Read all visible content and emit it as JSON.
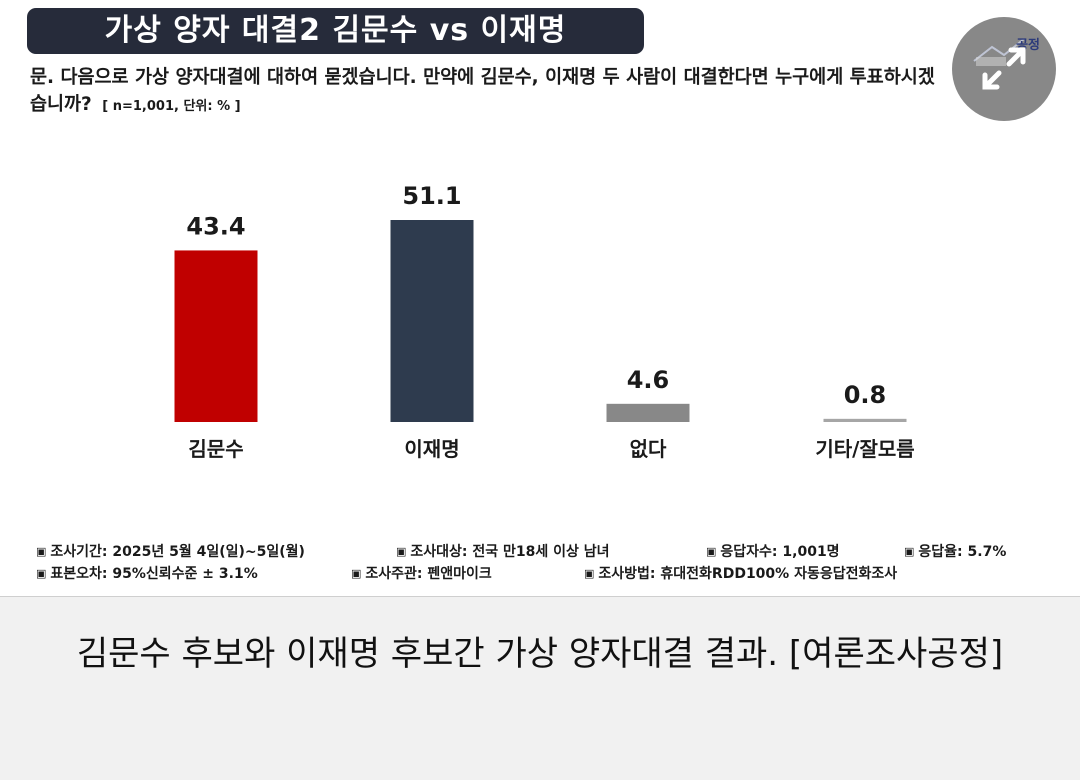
{
  "title": "가상 양자 대결2 김문수 vs 이재명",
  "question": "문. 다음으로 가상 양자대결에 대하여 묻겠습니다. 만약에 김문수, 이재명 두 사람이 대결한다면 누구에게 투표하시겠습니까?",
  "question_meta": "[ n=1,001, 단위: % ]",
  "chart_data": {
    "type": "bar",
    "title": "가상 양자 대결2 김문수 vs 이재명",
    "categories": [
      "김문수",
      "이재명",
      "없다",
      "기타/잘모름"
    ],
    "values": [
      43.4,
      51.1,
      4.6,
      0.8
    ],
    "value_labels": [
      "43.4",
      "51.1",
      "4.6",
      "0.8"
    ],
    "colors": [
      "#c00000",
      "#2e3b4e",
      "#888888",
      "#a6a6a6"
    ],
    "unit": "%",
    "ylim": [
      0,
      51.1
    ],
    "grid": false,
    "legend": "none"
  },
  "footer": {
    "row1": [
      {
        "bullet": "▣",
        "text": "조사기간: 2025년 5월 4일(일)~5일(월)"
      },
      {
        "bullet": "▣",
        "text": "조사대상: 전국 만18세 이상 남녀"
      },
      {
        "bullet": "▣",
        "text": "응답자수: 1,001명"
      },
      {
        "bullet": "▣",
        "text": "응답율: 5.7%"
      }
    ],
    "row2": [
      {
        "bullet": "▣",
        "text": "표본오차: 95%신뢰수준 ± 3.1%"
      },
      {
        "bullet": "▣",
        "text": "조사주관: 펜앤마이크"
      },
      {
        "bullet": "▣",
        "text": "조사방법: 휴대전화RDD100% 자동응답전화조사"
      }
    ]
  },
  "logo": {
    "text": "공정",
    "icon": "expand-arrows-icon"
  },
  "caption": "김문수 후보와 이재명 후보간 가상 양자대결 결과. [여론조사공정]"
}
